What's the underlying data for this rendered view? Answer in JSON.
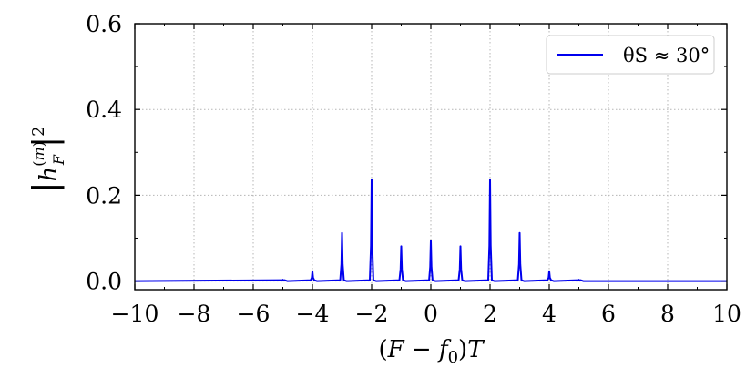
{
  "chart_data": {
    "type": "line",
    "xlabel": "(F − f₀)T",
    "ylabel": "|h_F^(m)|²",
    "xlim": [
      -10,
      10
    ],
    "ylim": [
      -0.02,
      0.6
    ],
    "x_ticks": [
      -10,
      -8,
      -6,
      -4,
      -2,
      0,
      2,
      4,
      6,
      8,
      10
    ],
    "x_tick_labels": [
      "−10",
      "−8",
      "−6",
      "−4",
      "−2",
      "0",
      "2",
      "4",
      "6",
      "8",
      "10"
    ],
    "y_ticks": [
      0.0,
      0.2,
      0.4,
      0.6
    ],
    "y_tick_labels": [
      "0.0",
      "0.2",
      "0.4",
      "0.6"
    ],
    "grid": true,
    "legend_position": "top-right",
    "series": [
      {
        "name": "θS ≈ 30°",
        "color": "#0000ee",
        "baseline": 0.0,
        "peaks": [
          {
            "x": -5,
            "y": 0.003
          },
          {
            "x": -4,
            "y": 0.023
          },
          {
            "x": -3,
            "y": 0.112
          },
          {
            "x": -2,
            "y": 0.237
          },
          {
            "x": -1,
            "y": 0.081
          },
          {
            "x": 0,
            "y": 0.094
          },
          {
            "x": 1,
            "y": 0.081
          },
          {
            "x": 2,
            "y": 0.237
          },
          {
            "x": 3,
            "y": 0.112
          },
          {
            "x": 4,
            "y": 0.023
          },
          {
            "x": 5,
            "y": 0.003
          }
        ]
      }
    ]
  }
}
